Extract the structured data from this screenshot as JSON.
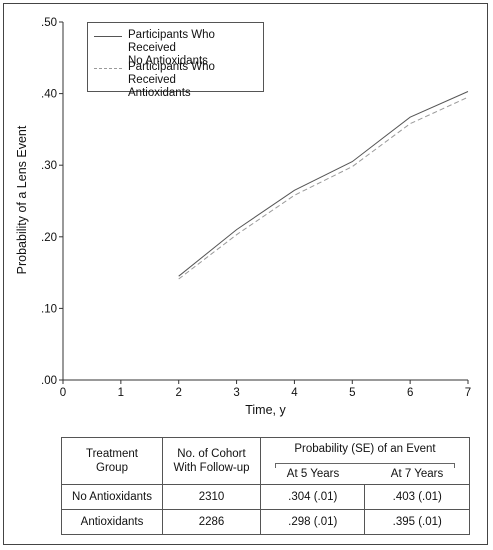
{
  "chart_data": {
    "type": "line",
    "xlabel": "Time, y",
    "ylabel": "Probability of a Lens Event",
    "xlim": [
      0,
      7
    ],
    "ylim": [
      0,
      0.5
    ],
    "x_ticks": [
      "0",
      "1",
      "2",
      "3",
      "4",
      "5",
      "6",
      "7"
    ],
    "y_ticks": [
      ".00",
      ".10",
      ".20",
      ".30",
      ".40",
      ".50"
    ],
    "grid": false,
    "legend_position": "top-left",
    "series": [
      {
        "name": "Participants Who Received No Antioxidants",
        "style": "solid",
        "color": "#555555",
        "x": [
          2,
          3,
          4,
          5,
          6,
          7
        ],
        "y": [
          0.145,
          0.21,
          0.265,
          0.305,
          0.367,
          0.403
        ]
      },
      {
        "name": "Participants Who Received Antioxidants",
        "style": "dashed",
        "color": "#999999",
        "x": [
          2,
          3,
          4,
          5,
          6,
          7
        ],
        "y": [
          0.141,
          0.203,
          0.258,
          0.298,
          0.358,
          0.395
        ]
      }
    ]
  },
  "legend": {
    "items": [
      {
        "line1": "Participants Who Received",
        "line2": "No Antioxidants"
      },
      {
        "line1": "Participants Who Received",
        "line2": "Antioxidants"
      }
    ]
  },
  "table": {
    "col_treatment_1": "Treatment",
    "col_treatment_2": "Group",
    "col_cohort_1": "No. of Cohort",
    "col_cohort_2": "With Follow-up",
    "col_prob": "Probability (SE) of an Event",
    "col_5y": "At 5 Years",
    "col_7y": "At 7 Years",
    "rows": [
      {
        "group": "No Antioxidants",
        "n": "2310",
        "p5": ".304 (.01)",
        "p7": ".403 (.01)"
      },
      {
        "group": "Antioxidants",
        "n": "2286",
        "p5": ".298 (.01)",
        "p7": ".395 (.01)"
      }
    ]
  }
}
